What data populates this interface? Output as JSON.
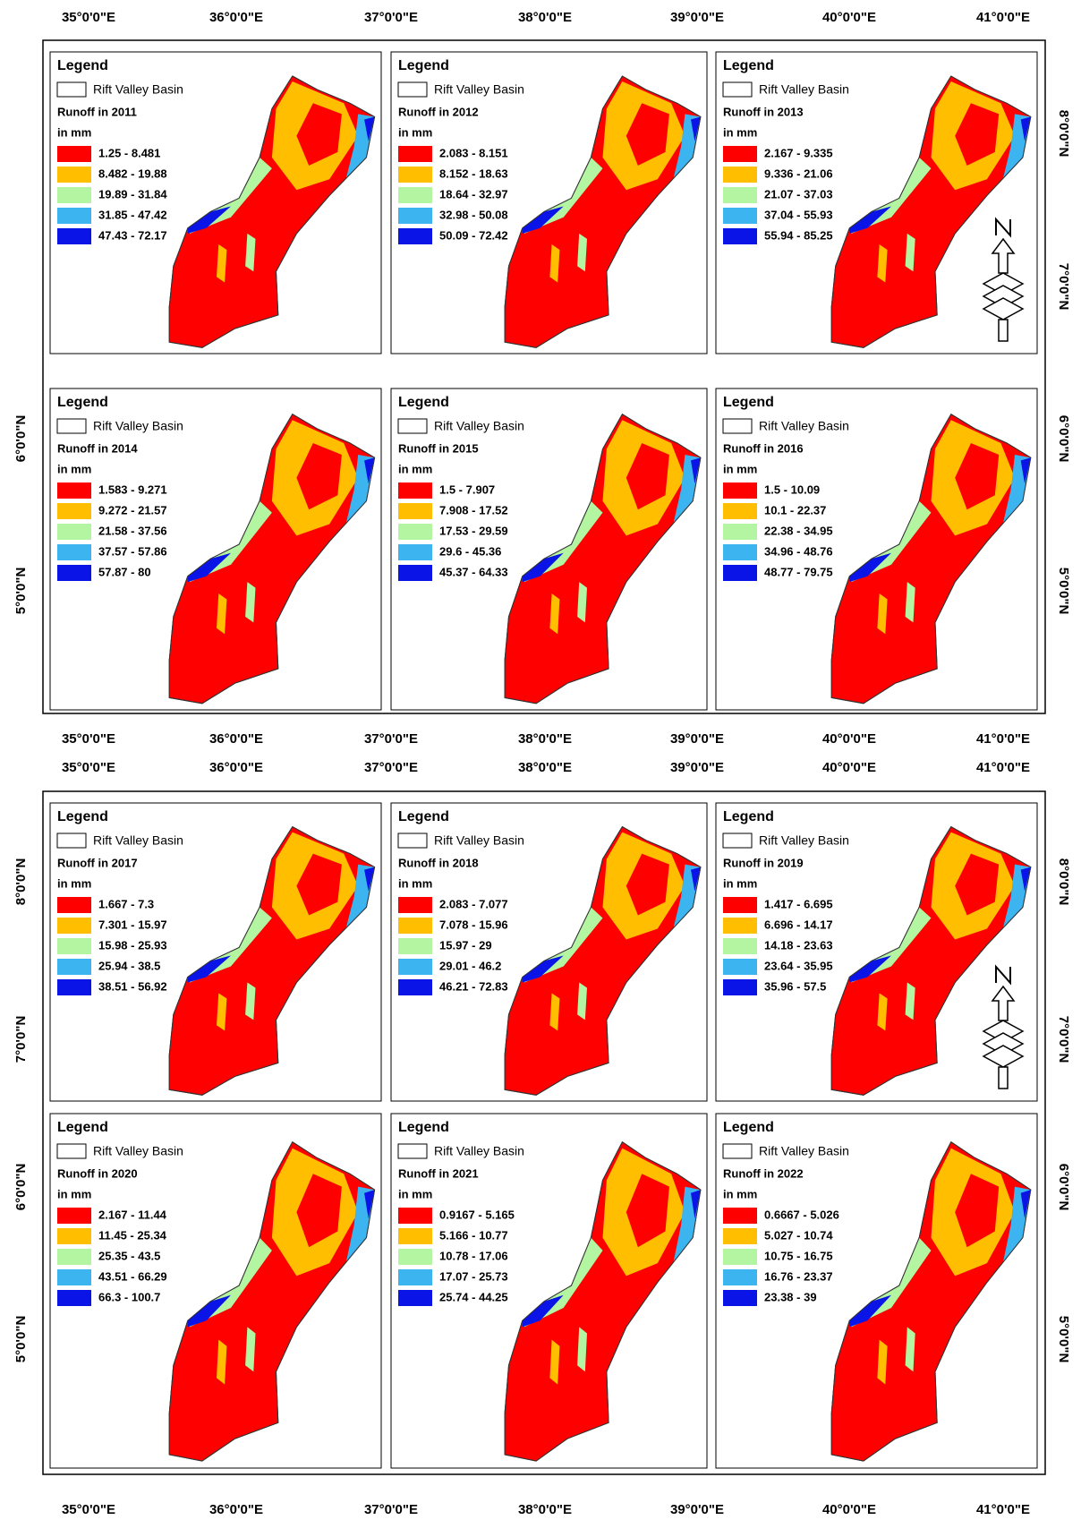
{
  "class_colors": [
    "#ff0000",
    "#ffbf00",
    "#b3f5a0",
    "#3cb4f0",
    "#0a14e6"
  ],
  "figures": [
    {
      "lon_top": [
        "35°0'0\"E",
        "36°0'0\"E",
        "37°0'0\"E",
        "38°0'0\"E",
        "39°0'0\"E",
        "40°0'0\"E",
        "41°0'0\"E"
      ],
      "lon_bottom": [
        "35°0'0\"E",
        "36°0'0\"E",
        "37°0'0\"E",
        "38°0'0\"E",
        "39°0'0\"E",
        "40°0'0\"E",
        "41°0'0\"E"
      ],
      "lat_left": [
        "6°0'0\"N",
        "5°0'0\"N"
      ],
      "lat_right": [
        "8°0'0\"N",
        "7°0'0\"N",
        "6°0'0\"N",
        "5°0'0\"N"
      ],
      "panels": [
        {
          "legend": "Legend",
          "basin": "Rift Valley Basin",
          "runoff": "Runoff in 2011",
          "unit": "in mm",
          "classes": [
            "1.25 - 8.481",
            "8.482 - 19.88",
            "19.89 - 31.84",
            "31.85 - 47.42",
            "47.43 - 72.17"
          ]
        },
        {
          "legend": "Legend",
          "basin": "Rift Valley Basin",
          "runoff": "Runoff in 2012",
          "unit": "in mm",
          "classes": [
            "2.083 - 8.151",
            "8.152 - 18.63",
            "18.64 - 32.97",
            "32.98 - 50.08",
            "50.09 - 72.42"
          ]
        },
        {
          "legend": "Legend",
          "basin": "Rift Valley Basin",
          "runoff": "Runoff in 2013",
          "unit": "in mm",
          "classes": [
            "2.167 - 9.335",
            "9.336 - 21.06",
            "21.07 - 37.03",
            "37.04 - 55.93",
            "55.94 - 85.25"
          ]
        },
        {
          "legend": "Legend",
          "basin": "Rift Valley Basin",
          "runoff": "Runoff in 2014",
          "unit": "in mm",
          "classes": [
            "1.583 - 9.271",
            "9.272 - 21.57",
            "21.58 - 37.56",
            "37.57 - 57.86",
            "57.87 - 80"
          ]
        },
        {
          "legend": "Legend",
          "basin": "Rift Valley Basin",
          "runoff": "Runoff in 2015",
          "unit": "in mm",
          "classes": [
            "1.5 - 7.907",
            "7.908 - 17.52",
            "17.53 - 29.59",
            "29.6 - 45.36",
            "45.37 - 64.33"
          ]
        },
        {
          "legend": "Legend",
          "basin": "Rift Valley Basin",
          "runoff": "Runoff in 2016",
          "unit": "in mm",
          "classes": [
            "1.5 - 10.09",
            "10.1 - 22.37",
            "22.38 - 34.95",
            "34.96 - 48.76",
            "48.77 - 79.75"
          ]
        }
      ]
    },
    {
      "lon_top": [
        "35°0'0\"E",
        "36°0'0\"E",
        "37°0'0\"E",
        "38°0'0\"E",
        "39°0'0\"E",
        "40°0'0\"E",
        "41°0'0\"E"
      ],
      "lon_bottom": [
        "35°0'0\"E",
        "36°0'0\"E",
        "37°0'0\"E",
        "38°0'0\"E",
        "39°0'0\"E",
        "40°0'0\"E",
        "41°0'0\"E"
      ],
      "lat_left": [
        "8°0'0\"N",
        "7°0'0\"N",
        "6°0'0\"N",
        "5°0'0\"N"
      ],
      "lat_right": [
        "8°0'0\"N",
        "7°0'0\"N",
        "6°0'0\"N",
        "5°0'0\"N"
      ],
      "panels": [
        {
          "legend": "Legend",
          "basin": "Rift Valley Basin",
          "runoff": "Runoff in 2017",
          "unit": "in mm",
          "classes": [
            "1.667 - 7.3",
            "7.301 - 15.97",
            "15.98 - 25.93",
            "25.94 - 38.5",
            "38.51 - 56.92"
          ]
        },
        {
          "legend": "Legend",
          "basin": "Rift Valley Basin",
          "runoff": "Runoff in 2018",
          "unit": "in mm",
          "classes": [
            "2.083 - 7.077",
            "7.078 - 15.96",
            "15.97 - 29",
            "29.01 - 46.2",
            "46.21 - 72.83"
          ]
        },
        {
          "legend": "Legend",
          "basin": "Rift Valley Basin",
          "runoff": "Runoff in 2019",
          "unit": "in mm",
          "classes": [
            "1.417 - 6.695",
            "6.696 - 14.17",
            "14.18 - 23.63",
            "23.64 - 35.95",
            "35.96 - 57.5"
          ]
        },
        {
          "legend": "Legend",
          "basin": "Rift Valley Basin",
          "runoff": "Runoff in 2020",
          "unit": "in mm",
          "classes": [
            "2.167 - 11.44",
            "11.45 - 25.34",
            "25.35 - 43.5",
            "43.51 - 66.29",
            "66.3 - 100.7"
          ]
        },
        {
          "legend": "Legend",
          "basin": "Rift Valley Basin",
          "runoff": "Runoff in 2021",
          "unit": "in mm",
          "classes": [
            "0.9167 - 5.165",
            "5.166 - 10.77",
            "10.78 - 17.06",
            "17.07 - 25.73",
            "25.74 - 44.25"
          ]
        },
        {
          "legend": "Legend",
          "basin": "Rift Valley Basin",
          "runoff": "Runoff in 2022",
          "unit": "in mm",
          "classes": [
            "0.6667 - 5.026",
            "5.027 - 10.74",
            "10.75 - 16.75",
            "16.76 - 23.37",
            "23.38 - 39"
          ]
        }
      ]
    }
  ]
}
